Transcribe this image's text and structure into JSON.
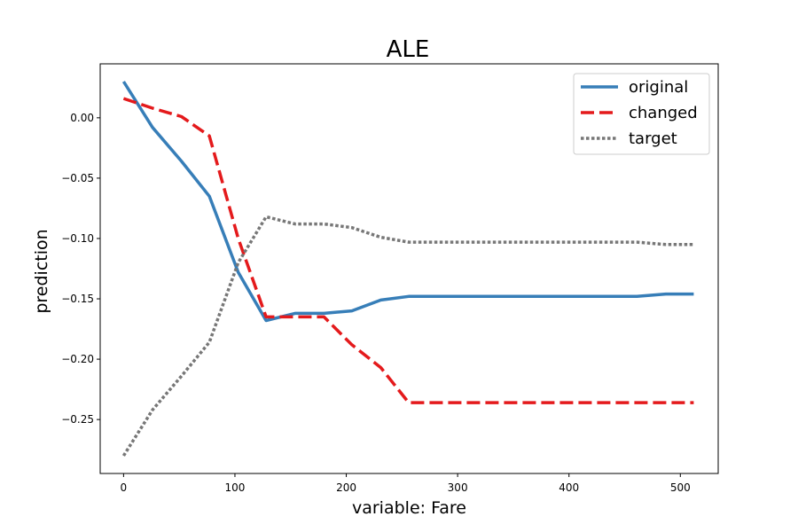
{
  "chart_data": {
    "type": "line",
    "title": "ALE",
    "xlabel": "variable: Fare",
    "ylabel": "prediction",
    "xlim": [
      -21,
      534
    ],
    "ylim": [
      -0.2947,
      0.0447
    ],
    "xticks": [
      0,
      100,
      200,
      300,
      400,
      500
    ],
    "xtick_labels": [
      "0",
      "100",
      "200",
      "300",
      "400",
      "500"
    ],
    "yticks": [
      0.0,
      -0.05,
      -0.1,
      -0.15,
      -0.2,
      -0.25
    ],
    "ytick_labels": [
      "0.00",
      "−0.05",
      "−0.10",
      "−0.15",
      "−0.20",
      "−0.25"
    ],
    "grid": false,
    "legend_position": "top-right",
    "series": [
      {
        "name": "original",
        "color": "#377eb8",
        "style": "solid",
        "x": [
          0,
          26,
          52,
          77,
          103,
          128,
          154,
          180,
          205,
          231,
          256,
          282,
          308,
          333,
          359,
          384,
          410,
          436,
          461,
          487,
          512
        ],
        "y": [
          0.03,
          -0.008,
          -0.036,
          -0.065,
          -0.128,
          -0.168,
          -0.162,
          -0.162,
          -0.16,
          -0.151,
          -0.148,
          -0.148,
          -0.148,
          -0.148,
          -0.148,
          -0.148,
          -0.148,
          -0.148,
          -0.148,
          -0.146,
          -0.146
        ]
      },
      {
        "name": "changed",
        "color": "#e41a1c",
        "style": "dashed",
        "x": [
          0,
          26,
          52,
          77,
          103,
          128,
          154,
          180,
          205,
          231,
          256,
          282,
          308,
          333,
          359,
          384,
          410,
          436,
          461,
          487,
          512
        ],
        "y": [
          0.016,
          0.008,
          0.001,
          -0.015,
          -0.1,
          -0.165,
          -0.165,
          -0.165,
          -0.188,
          -0.207,
          -0.236,
          -0.236,
          -0.236,
          -0.236,
          -0.236,
          -0.236,
          -0.236,
          -0.236,
          -0.236,
          -0.236,
          -0.236
        ]
      },
      {
        "name": "target",
        "color": "#777777",
        "style": "dotted",
        "x": [
          0,
          26,
          52,
          77,
          103,
          128,
          154,
          180,
          205,
          231,
          256,
          282,
          308,
          333,
          359,
          384,
          410,
          436,
          461,
          487,
          512
        ],
        "y": [
          -0.28,
          -0.242,
          -0.214,
          -0.186,
          -0.12,
          -0.082,
          -0.088,
          -0.088,
          -0.091,
          -0.099,
          -0.103,
          -0.103,
          -0.103,
          -0.103,
          -0.103,
          -0.103,
          -0.103,
          -0.103,
          -0.103,
          -0.105,
          -0.105
        ]
      }
    ]
  }
}
